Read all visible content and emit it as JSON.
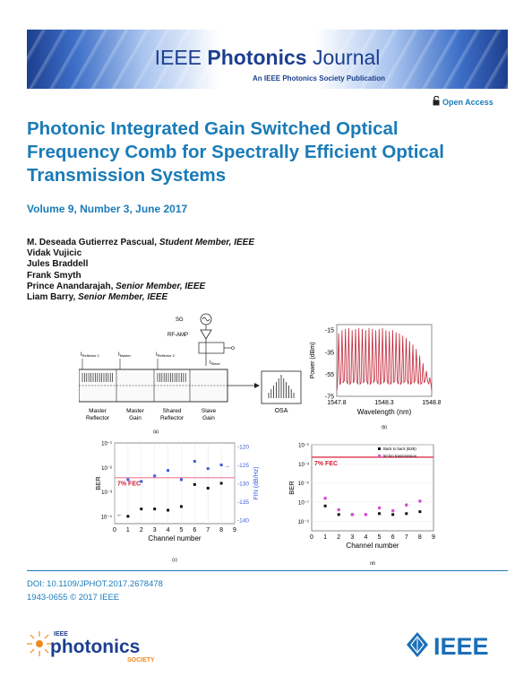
{
  "journal": {
    "title_light": "IEEE ",
    "title_bold": "Photonics",
    "title_rest": " Journal",
    "subtitle": "An IEEE Photonics Society Publication",
    "open_access": "Open Access"
  },
  "article": {
    "title": "Photonic Integrated Gain Switched Optical Frequency Comb for Spectrally Efficient Optical Transmission Systems",
    "volume": "Volume 9, Number 3, June 2017",
    "authors": [
      {
        "name": "M. Deseada Gutierrez Pascual",
        "role": "Student Member, IEEE"
      },
      {
        "name": "Vidak Vujicic",
        "role": ""
      },
      {
        "name": "Jules Braddell",
        "role": ""
      },
      {
        "name": "Frank Smyth",
        "role": ""
      },
      {
        "name": "Prince Anandarajah",
        "role": "Senior Member, IEEE"
      },
      {
        "name": "Liam Barry",
        "role": "Senior Member, IEEE"
      }
    ]
  },
  "figure_a": {
    "sg": "SG",
    "rf_amp": "RF-AMP",
    "i_reflector1": "I",
    "i_reflector1_sub": "Reflector 1",
    "i_master": "I",
    "i_master_sub": "Master",
    "i_reflector2": "I",
    "i_reflector2_sub": "Reflector 2",
    "i_slave": "I",
    "i_slave_sub": "Slave",
    "labels": [
      "Master Reflector",
      "Master Gain",
      "Shared Reflector",
      "Slave Gain"
    ],
    "label_lines": [
      [
        "Master",
        "Reflector"
      ],
      [
        "Master",
        "Gain"
      ],
      [
        "Shared",
        "Reflector"
      ],
      [
        "Slave",
        "Gain"
      ]
    ],
    "osa": "OSA",
    "caption": "(a)"
  },
  "footer": {
    "doi": "DOI: 10.1109/JPHOT.2017.2678478",
    "issn": "1943-0655 © 2017 IEEE",
    "society_top": "IEEE",
    "society_word": "photonics",
    "society_bottom": "SOCIETY",
    "ieee": "IEEE"
  },
  "chart_data": [
    {
      "type": "line",
      "caption": "(b)",
      "xlabel": "Wavelength (nm)",
      "ylabel": "Power (dBm)",
      "x_ticks": [
        1547.8,
        1548.3,
        1548.8
      ],
      "y_ticks": [
        -15,
        -35,
        -55,
        -75
      ],
      "ylim": [
        -75,
        -10
      ],
      "xlim": [
        1547.8,
        1548.8
      ],
      "peaks": {
        "count": 28,
        "top_dbm": [
          -18,
          -15,
          -14,
          -13,
          -15,
          -14,
          -13,
          -14,
          -15,
          -13,
          -14,
          -15,
          -14,
          -13,
          -15,
          -16,
          -15,
          -17,
          -18,
          -20,
          -22,
          -25,
          -28,
          -32,
          -38,
          -45,
          -52,
          -58
        ]
      },
      "floor_dbm": -64,
      "color": "#c0283a"
    },
    {
      "type": "scatter",
      "caption": "(c)",
      "xlabel": "Channel number",
      "ylabel": "BER",
      "y2label": "FIN (dB/Hz)",
      "x_ticks": [
        0,
        1,
        2,
        3,
        4,
        5,
        6,
        7,
        8,
        9
      ],
      "y_ticks": [
        "10⁻¹",
        "10⁻²",
        "10⁻³",
        "10⁻⁴"
      ],
      "y2_ticks": [
        -120,
        -125,
        -130,
        -135,
        -140
      ],
      "fec_label": "7% FEC",
      "series": [
        {
          "name": "",
          "axis": "left",
          "color": "#111111",
          "x": [
            1,
            2,
            3,
            4,
            5,
            6,
            7,
            8
          ],
          "y_log10": [
            -4.0,
            -3.7,
            -3.7,
            -3.75,
            -3.6,
            -2.7,
            -2.85,
            -2.65
          ]
        },
        {
          "name": "",
          "axis": "right",
          "color": "#3a5bd9",
          "x": [
            1,
            2,
            3,
            4,
            5,
            6,
            7,
            8
          ],
          "y": [
            -129,
            -129.5,
            -128,
            -126.5,
            -129,
            -124,
            -126,
            -125
          ]
        }
      ]
    },
    {
      "type": "scatter",
      "caption": "(d)",
      "xlabel": "Channel number",
      "ylabel": "BER",
      "x_ticks": [
        0,
        1,
        2,
        3,
        4,
        5,
        6,
        7,
        8,
        9
      ],
      "y_ticks": [
        "10⁻¹",
        "10⁻³",
        "10⁻⁵",
        "10⁻⁷",
        "10⁻⁹"
      ],
      "fec_label": "7% FEC",
      "legend": [
        "Back to back (B2B)",
        "50 km transmission"
      ],
      "series": [
        {
          "name": "Back to back (B2B)",
          "color": "#111111",
          "x": [
            1,
            2,
            3,
            4,
            5,
            6,
            7,
            8
          ],
          "y_log10": [
            -7.4,
            -8.3,
            -8.3,
            -8.3,
            -8.2,
            -8.3,
            -8.2,
            -8.0
          ]
        },
        {
          "name": "50 km transmission",
          "color": "#d84fd8",
          "x": [
            1,
            2,
            3,
            4,
            5,
            6,
            7,
            8
          ],
          "y_log10": [
            -6.6,
            -7.8,
            -8.3,
            -8.3,
            -7.6,
            -7.9,
            -7.3,
            -6.9
          ]
        }
      ]
    }
  ]
}
